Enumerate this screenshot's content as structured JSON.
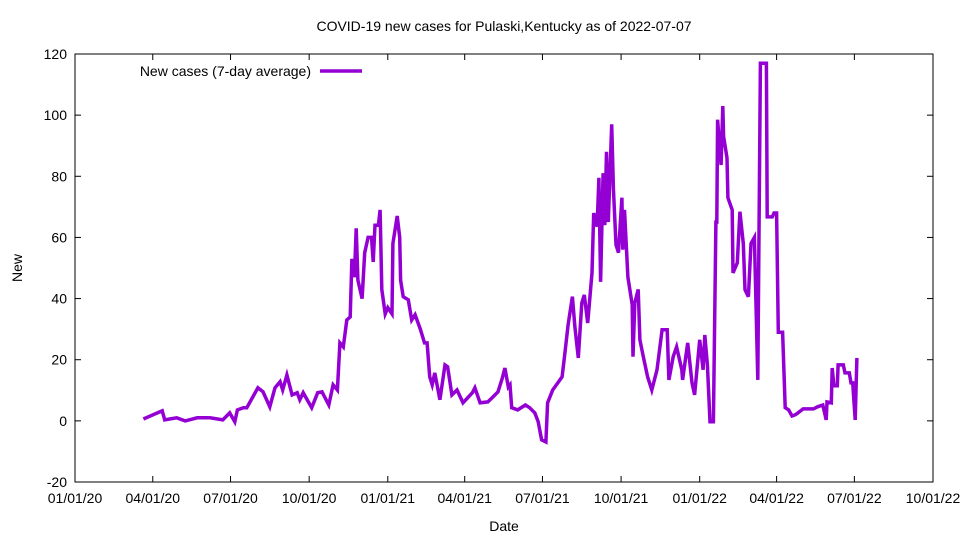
{
  "chart_data": {
    "type": "line",
    "title": "COVID-19 new cases for Pulaski,Kentucky as of 2022-07-07",
    "xlabel": "Date",
    "ylabel": "New",
    "x_units": "days since 2020-01-01",
    "x_origin": "2020-01-01",
    "xlim": [
      0,
      1004
    ],
    "ylim": [
      -20,
      120
    ],
    "grid": false,
    "legend_placement": "top-left",
    "x_ticks": [
      {
        "value": 0,
        "label": "01/01/20"
      },
      {
        "value": 91,
        "label": "04/01/20"
      },
      {
        "value": 182,
        "label": "07/01/20"
      },
      {
        "value": 274,
        "label": "10/01/20"
      },
      {
        "value": 366,
        "label": "01/01/21"
      },
      {
        "value": 456,
        "label": "04/01/21"
      },
      {
        "value": 547,
        "label": "07/01/21"
      },
      {
        "value": 639,
        "label": "10/01/21"
      },
      {
        "value": 731,
        "label": "01/01/22"
      },
      {
        "value": 821,
        "label": "04/01/22"
      },
      {
        "value": 912,
        "label": "07/01/22"
      },
      {
        "value": 1004,
        "label": "10/01/22"
      }
    ],
    "y_ticks": [
      {
        "value": -20,
        "label": "-20"
      },
      {
        "value": 0,
        "label": "0"
      },
      {
        "value": 20,
        "label": "20"
      },
      {
        "value": 40,
        "label": "40"
      },
      {
        "value": 60,
        "label": "60"
      },
      {
        "value": 80,
        "label": "80"
      },
      {
        "value": 100,
        "label": "100"
      },
      {
        "value": 120,
        "label": "120"
      }
    ],
    "series": [
      {
        "name": "New cases (7-day average)",
        "color": "#9400d3",
        "x": [
          80,
          102,
          105,
          119,
          129,
          143,
          158,
          173,
          181,
          187,
          190,
          197,
          201,
          208,
          214,
          220,
          228,
          234,
          240,
          243,
          248,
          254,
          260,
          263,
          267,
          277,
          284,
          289,
          297,
          302,
          307,
          310,
          314,
          318,
          322,
          324,
          327,
          329,
          331,
          336,
          339,
          343,
          347,
          349,
          351,
          355,
          357,
          359,
          363,
          366,
          371,
          372,
          377,
          380,
          381,
          384,
          390,
          394,
          398,
          404,
          409,
          412,
          415,
          418,
          421,
          427,
          433,
          436,
          441,
          447,
          454,
          465,
          468,
          474,
          483,
          489,
          495,
          500,
          503,
          507,
          509,
          511,
          518,
          527,
          532,
          538,
          542,
          546,
          551,
          553,
          559,
          565,
          570,
          573,
          577,
          582,
          585,
          589,
          593,
          596,
          600,
          605,
          607,
          611,
          613,
          615,
          618,
          620,
          622,
          624,
          628,
          630,
          633,
          636,
          640,
          641,
          643,
          647,
          652,
          653,
          655,
          659,
          661,
          665,
          670,
          675,
          681,
          687,
          693,
          695,
          700,
          704,
          710,
          711,
          717,
          722,
          725,
          731,
          735,
          737,
          740,
          743,
          747,
          750,
          751,
          752,
          756,
          758,
          759,
          763,
          764,
          769,
          770,
          775,
          778,
          782,
          784,
          788,
          791,
          795,
          799,
          802,
          809,
          810,
          816,
          818,
          821,
          823,
          828,
          831,
          835,
          839,
          843,
          846,
          852,
          864,
          869,
          875,
          879,
          880,
          885,
          886,
          888,
          892,
          893,
          899,
          901,
          906,
          908,
          910,
          913,
          915
        ],
        "y": [
          0.6,
          3.3,
          0.3,
          1,
          0,
          1,
          1,
          0.3,
          2.6,
          -0.3,
          3.6,
          4.3,
          4.3,
          7.8,
          10.8,
          9.5,
          4.6,
          10.8,
          12.8,
          10.1,
          15,
          8.5,
          9.2,
          6.9,
          9.2,
          4.3,
          9.2,
          9.5,
          5.2,
          11.8,
          10.1,
          25.5,
          24.2,
          33,
          34,
          53,
          47,
          63,
          46,
          40,
          55,
          60,
          60,
          52,
          64,
          64,
          69,
          43,
          35,
          37,
          35,
          58,
          67,
          60,
          46,
          40.6,
          39.6,
          33,
          34.7,
          30,
          25.5,
          25.5,
          14.4,
          11.8,
          15.7,
          6.9,
          18.3,
          17.7,
          8.5,
          10.1,
          5.9,
          9.2,
          10.8,
          5.9,
          6.2,
          7.8,
          9.5,
          14,
          17.3,
          11.1,
          11.8,
          4.3,
          3.6,
          5.2,
          4.3,
          2.6,
          -0.3,
          -6.2,
          -6.9,
          5.9,
          10.1,
          12.4,
          14.4,
          21.6,
          31.4,
          40.6,
          30.7,
          20.6,
          38.6,
          41.2,
          32,
          48.4,
          68,
          63.5,
          79.5,
          45.5,
          81,
          64,
          88,
          65,
          97,
          76,
          57.6,
          55,
          73,
          56,
          69,
          47,
          38,
          21,
          38.6,
          43,
          26.5,
          21,
          14.4,
          10.1,
          16.7,
          29.8,
          29.8,
          13.4,
          21,
          24.2,
          16.7,
          13.4,
          25.5,
          12.4,
          8.5,
          26.5,
          16.7,
          28.1,
          18.3,
          -0.3,
          -0.3,
          65,
          65,
          98.5,
          83.7,
          103,
          93,
          86,
          73,
          69,
          48.4,
          51.7,
          68.4,
          58,
          42.9,
          40.6,
          58,
          60,
          13.4,
          117,
          117,
          66.7,
          66.7,
          68,
          68,
          29,
          29,
          4.3,
          3.6,
          1.6,
          2,
          2.6,
          3.9,
          3.9,
          4.6,
          5.2,
          0.3,
          6.2,
          5.9,
          17.3,
          11.5,
          11.5,
          18.3,
          18.3,
          15.7,
          15.7,
          12.4,
          12.4,
          0.3,
          20.6
        ]
      }
    ]
  }
}
